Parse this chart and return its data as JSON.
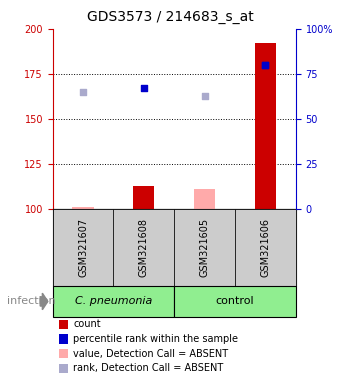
{
  "title": "GDS3573 / 214683_s_at",
  "samples": [
    "GSM321607",
    "GSM321608",
    "GSM321605",
    "GSM321606"
  ],
  "group_boundaries": [
    0,
    2,
    4
  ],
  "group_labels": [
    "C. pneumonia",
    "control"
  ],
  "bar_bottom": 100,
  "count_values": [
    101.5,
    113.0,
    111.5,
    192.0
  ],
  "count_absent": [
    true,
    false,
    true,
    false
  ],
  "rank_values": [
    165.0,
    167.0,
    163.0,
    180.0
  ],
  "rank_absent": [
    true,
    false,
    true,
    false
  ],
  "percentile_values": [
    null,
    null,
    null,
    80.0
  ],
  "percentile_absent": [
    true,
    true,
    true,
    false
  ],
  "ylim_left": [
    100,
    200
  ],
  "ylim_right": [
    0,
    100
  ],
  "yticks_left": [
    100,
    125,
    150,
    175,
    200
  ],
  "yticks_right": [
    0,
    25,
    50,
    75,
    100
  ],
  "yticklabels_right": [
    "0",
    "25",
    "50",
    "75",
    "100%"
  ],
  "left_tick_color": "#cc0000",
  "right_tick_color": "#0000cc",
  "infection_label": "infection",
  "bar_color_absent_count": "#ffaaaa",
  "bar_color_present_count": "#cc0000",
  "dot_color_absent_rank": "#aaaacc",
  "dot_color_present_rank": "#0000cc",
  "dot_color_present_pct": "#0000cc",
  "sample_box_color": "#cccccc",
  "group_box_color": "#90EE90",
  "legend_items": [
    {
      "label": "count",
      "color": "#cc0000"
    },
    {
      "label": "percentile rank within the sample",
      "color": "#0000cc"
    },
    {
      "label": "value, Detection Call = ABSENT",
      "color": "#ffaaaa"
    },
    {
      "label": "rank, Detection Call = ABSENT",
      "color": "#aaaacc"
    }
  ],
  "bar_width": 0.35,
  "hlines": [
    125,
    150,
    175
  ],
  "title_fontsize": 10,
  "tick_fontsize": 7,
  "sample_fontsize": 7,
  "group_fontsize": 8,
  "legend_fontsize": 7,
  "infection_fontsize": 8
}
